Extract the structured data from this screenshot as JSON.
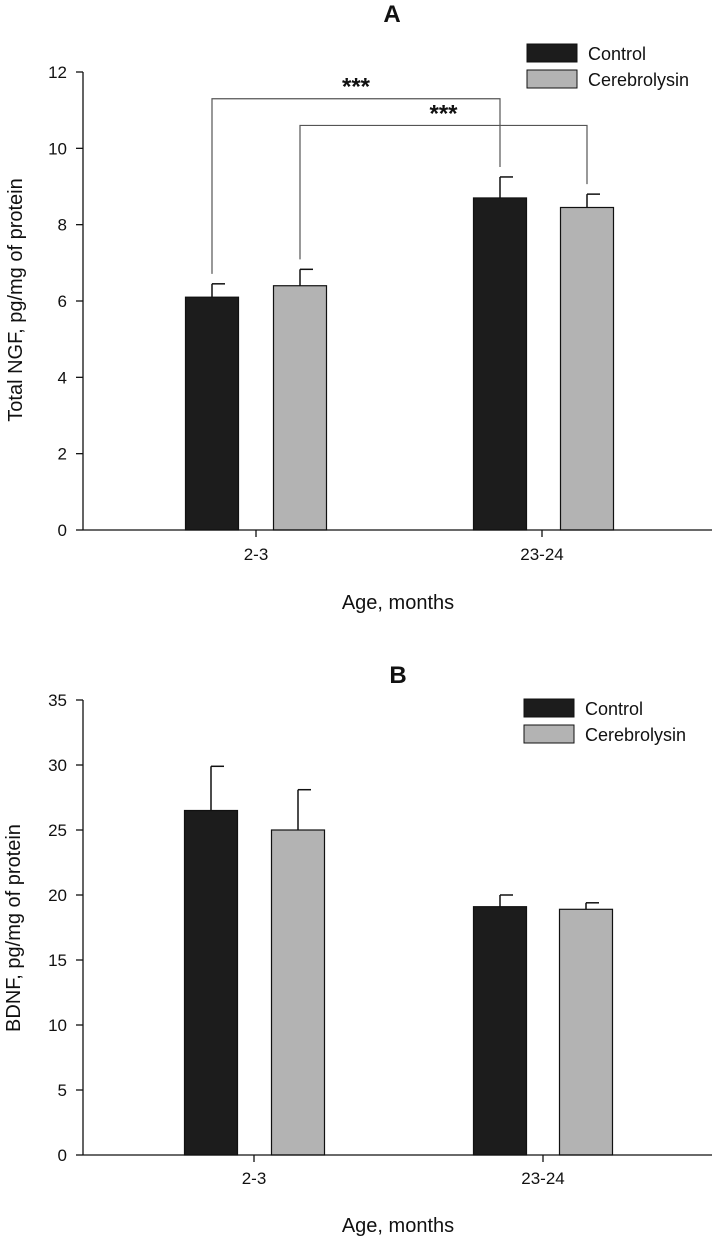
{
  "chart_data": [
    {
      "type": "bar",
      "title": "A",
      "xlabel": "Age, months",
      "ylabel": "Total NGF, pg/mg of protein",
      "categories": [
        "2-3",
        "23-24"
      ],
      "ylim": [
        0,
        12
      ],
      "yticks": [
        0,
        2,
        4,
        6,
        8,
        10,
        12
      ],
      "legend": "top-right",
      "series": [
        {
          "name": "Control",
          "color": "#1c1c1c",
          "values": [
            6.1,
            8.7
          ],
          "errors": [
            0.35,
            0.55
          ]
        },
        {
          "name": "Cerebrolysin",
          "color": "#b3b3b3",
          "values": [
            6.4,
            8.45
          ],
          "errors": [
            0.43,
            0.35
          ]
        }
      ],
      "significance": [
        {
          "label": "***",
          "from": {
            "category": 0,
            "series": 0
          },
          "to": {
            "category": 1,
            "series": 0
          },
          "level": 11.3
        },
        {
          "label": "***",
          "from": {
            "category": 0,
            "series": 1
          },
          "to": {
            "category": 1,
            "series": 1
          },
          "level": 10.6
        }
      ]
    },
    {
      "type": "bar",
      "title": "B",
      "xlabel": "Age, months",
      "ylabel": "BDNF, pg/mg of protein",
      "categories": [
        "2-3",
        "23-24"
      ],
      "ylim": [
        0,
        35
      ],
      "yticks": [
        0,
        5,
        10,
        15,
        20,
        25,
        30,
        35
      ],
      "legend": "top-right",
      "series": [
        {
          "name": "Control",
          "color": "#1c1c1c",
          "values": [
            26.5,
            19.1
          ],
          "errors": [
            3.4,
            0.9
          ]
        },
        {
          "name": "Cerebrolysin",
          "color": "#b3b3b3",
          "values": [
            25.0,
            18.9
          ],
          "errors": [
            3.1,
            0.5
          ]
        }
      ],
      "significance": []
    }
  ]
}
